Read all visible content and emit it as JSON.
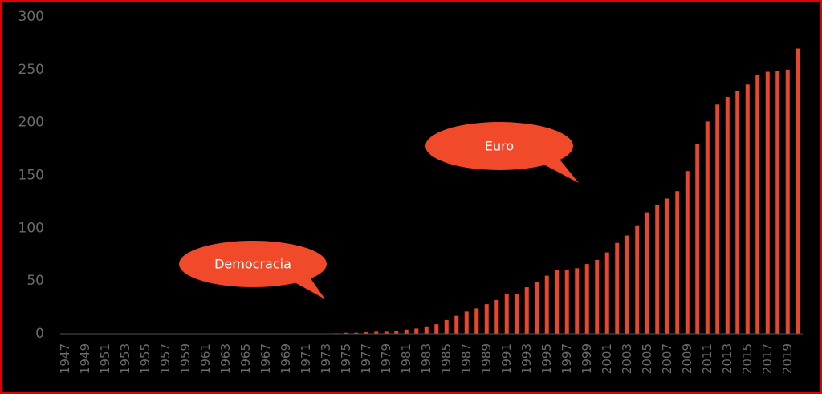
{
  "chart_data": {
    "type": "bar",
    "categories": [
      "1947",
      null,
      "1949",
      null,
      "1951",
      null,
      "1953",
      null,
      "1955",
      null,
      "1957",
      null,
      "1959",
      null,
      "1961",
      null,
      "1963",
      null,
      "1965",
      null,
      "1967",
      null,
      "1969",
      null,
      "1971",
      null,
      "1973",
      null,
      "1975",
      null,
      "1977",
      null,
      "1979",
      null,
      "1981",
      null,
      "1983",
      null,
      "1985",
      null,
      "1987",
      null,
      "1989",
      null,
      "1991",
      null,
      "1993",
      null,
      "1995",
      null,
      "1997",
      null,
      "1999",
      null,
      "2001",
      null,
      "2003",
      null,
      "2005",
      null,
      "2007",
      null,
      "2009",
      null,
      "2011",
      null,
      "2013",
      null,
      "2015",
      null,
      "2017",
      null,
      "2019",
      null
    ],
    "values": [
      0,
      0,
      0,
      0,
      0,
      0,
      0,
      0,
      0,
      0,
      0,
      0,
      0,
      0,
      0,
      0,
      0,
      0,
      0,
      0,
      0,
      0,
      0,
      0,
      0,
      0,
      0,
      0.5,
      1,
      1,
      1.5,
      2,
      2,
      3,
      4,
      5,
      7,
      9,
      13,
      17,
      21,
      24,
      28,
      32,
      38,
      38,
      44,
      49,
      55,
      60,
      60,
      62,
      66,
      70,
      77,
      86,
      93,
      102,
      115,
      122,
      128,
      135,
      154,
      180,
      201,
      217,
      224,
      230,
      236,
      245,
      248,
      249,
      250,
      270
    ],
    "color": "#e8472b",
    "ylim": [
      0,
      300
    ],
    "yticks": [
      0,
      50,
      100,
      150,
      200,
      250,
      300
    ],
    "annotations": [
      "Democracia",
      "Euro"
    ]
  }
}
